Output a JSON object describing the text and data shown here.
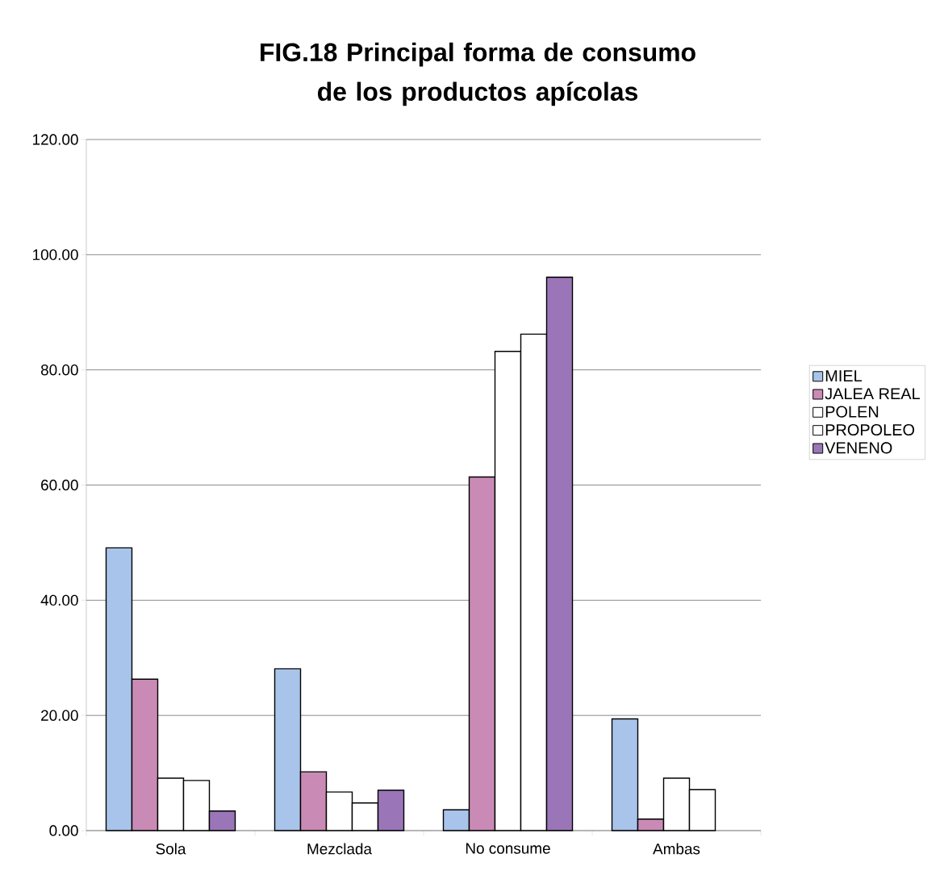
{
  "chart_data": {
    "type": "bar",
    "title": "FIG.18   Principal forma de consumo de los productos apícolas",
    "categories": [
      "Sola",
      "Mezclada",
      "No consume",
      "Ambas"
    ],
    "series": [
      {
        "name": "MIEL",
        "color": "#a9c4ea",
        "values": [
          49.1,
          28.1,
          3.6,
          19.4
        ]
      },
      {
        "name": "JALEA REAL",
        "color": "#c98bb5",
        "values": [
          26.3,
          10.2,
          61.4,
          2.0
        ]
      },
      {
        "name": "POLEN",
        "color": "#ffffff",
        "values": [
          9.1,
          6.7,
          83.2,
          9.1
        ]
      },
      {
        "name": "PROPOLEO",
        "color": "#ffffff",
        "values": [
          8.7,
          4.8,
          86.2,
          7.1
        ]
      },
      {
        "name": "VENENO",
        "color": "#9a76b8",
        "values": [
          3.4,
          7.0,
          96.1,
          null
        ]
      }
    ],
    "ylim": [
      0,
      120
    ],
    "yticks": [
      {
        "value": 0,
        "label": "0.00"
      },
      {
        "value": 20,
        "label": "20.00"
      },
      {
        "value": 40,
        "label": "40.00"
      },
      {
        "value": 60,
        "label": "60.00"
      },
      {
        "value": 80,
        "label": "80.00"
      },
      {
        "value": 100,
        "label": "100.00"
      },
      {
        "value": 120,
        "label": "120.00"
      }
    ],
    "grid": "y",
    "legend": "right"
  }
}
